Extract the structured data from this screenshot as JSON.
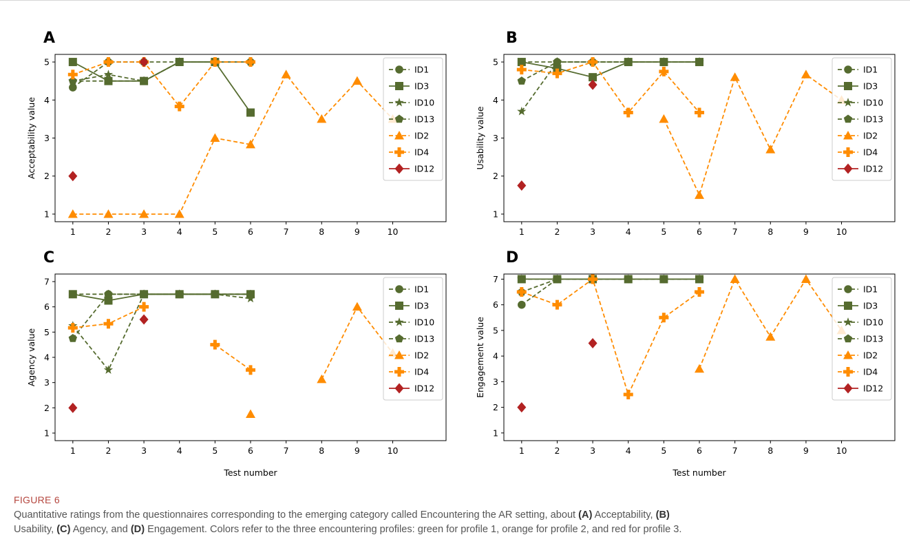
{
  "figure": {
    "label": "FIGURE 6",
    "caption": {
      "t1": "Quantitative ratings from the questionnaires corresponding to the emerging category called Encountering the AR setting, about ",
      "b1": "(A)",
      "t2": " Acceptability, ",
      "b2": "(B)",
      "t3": "Usability, ",
      "b3": "(C)",
      "t4": " Agency, and ",
      "b4": "(D)",
      "t5": " Engagement. Colors refer to the three encountering profiles: green for profile 1, orange for profile 2, and red for profile 3."
    }
  },
  "legend_entries": [
    {
      "name": "ID1",
      "color": "#556b2f",
      "marker": "circle",
      "dash": true
    },
    {
      "name": "ID3",
      "color": "#556b2f",
      "marker": "square",
      "dash": false
    },
    {
      "name": "ID10",
      "color": "#556b2f",
      "marker": "star",
      "dash": true
    },
    {
      "name": "ID13",
      "color": "#556b2f",
      "marker": "pentagon",
      "dash": true
    },
    {
      "name": "ID2",
      "color": "#ff8c00",
      "marker": "triangle",
      "dash": true
    },
    {
      "name": "ID4",
      "color": "#ff8c00",
      "marker": "plus",
      "dash": true
    },
    {
      "name": "ID12",
      "color": "#b22222",
      "marker": "diamond",
      "dash": false
    }
  ],
  "chart_data": [
    {
      "panel": "A",
      "type": "line",
      "ylabel": "Acceptability value",
      "xlabel": "",
      "xticks": [
        "1",
        "2",
        "3",
        "4",
        "5",
        "6",
        "7",
        "8",
        "9",
        "10"
      ],
      "yticks": [
        "1",
        "2",
        "3",
        "4",
        "5"
      ],
      "ylim": [
        0.8,
        5.2
      ],
      "xlim": [
        0.5,
        11.5
      ],
      "legend_position": "top-right",
      "series": [
        {
          "name": "ID1",
          "x": [
            1,
            2,
            3,
            4,
            5,
            6
          ],
          "y": [
            4.33,
            5,
            5,
            5,
            5,
            5
          ]
        },
        {
          "name": "ID3",
          "x": [
            1,
            2,
            3,
            4,
            5,
            6
          ],
          "y": [
            5,
            4.5,
            4.5,
            5,
            5,
            3.67
          ]
        },
        {
          "name": "ID10",
          "x": [
            1,
            2,
            3,
            4,
            5,
            6
          ],
          "y": [
            4.5,
            4.67,
            4.5,
            5,
            5,
            5
          ]
        },
        {
          "name": "ID13",
          "x": [
            1,
            2,
            3,
            4,
            5,
            6
          ],
          "y": [
            4.5,
            4.5,
            4.5,
            5,
            5,
            5
          ]
        },
        {
          "name": "ID2",
          "x": [
            1,
            2,
            3,
            4,
            5,
            6,
            7,
            8,
            9,
            10
          ],
          "y": [
            1,
            1,
            1,
            1,
            3,
            2.83,
            4.67,
            3.5,
            4.5,
            3.5
          ]
        },
        {
          "name": "ID4",
          "x": [
            1,
            2,
            3,
            4,
            5,
            6
          ],
          "y": [
            4.67,
            5,
            5,
            3.83,
            5,
            5
          ]
        },
        {
          "name": "ID12",
          "x": [
            1,
            2,
            3
          ],
          "y": [
            2,
            null,
            5
          ]
        }
      ]
    },
    {
      "panel": "B",
      "type": "line",
      "ylabel": "Usability value",
      "xlabel": "",
      "xticks": [
        "1",
        "2",
        "3",
        "4",
        "5",
        "6",
        "7",
        "8",
        "9",
        "10"
      ],
      "yticks": [
        "1",
        "2",
        "3",
        "4",
        "5"
      ],
      "ylim": [
        0.8,
        5.2
      ],
      "xlim": [
        0.5,
        11.5
      ],
      "legend_position": "top-right",
      "series": [
        {
          "name": "ID1",
          "x": [
            1,
            2,
            3,
            4,
            5,
            6
          ],
          "y": [
            5,
            5,
            5,
            5,
            5,
            5
          ]
        },
        {
          "name": "ID3",
          "x": [
            1,
            2,
            3,
            4,
            5,
            6
          ],
          "y": [
            5,
            4.83,
            4.6,
            5,
            5,
            5
          ]
        },
        {
          "name": "ID10",
          "x": [
            1,
            2,
            3,
            4,
            5,
            6
          ],
          "y": [
            3.7,
            5,
            5,
            5,
            5,
            5
          ]
        },
        {
          "name": "ID13",
          "x": [
            1,
            2,
            3,
            4,
            5,
            6
          ],
          "y": [
            4.5,
            5,
            5,
            5,
            5,
            5
          ]
        },
        {
          "name": "ID2",
          "x": [
            1,
            2,
            3,
            4,
            5,
            6,
            7,
            8,
            9,
            10
          ],
          "y": [
            null,
            null,
            null,
            null,
            3.5,
            1.5,
            4.6,
            2.7,
            4.67,
            4.0
          ]
        },
        {
          "name": "ID4",
          "x": [
            1,
            2,
            3,
            4,
            5,
            6
          ],
          "y": [
            4.8,
            4.7,
            5,
            3.67,
            4.75,
            3.67
          ]
        },
        {
          "name": "ID12",
          "x": [
            1,
            2,
            3
          ],
          "y": [
            1.75,
            null,
            4.4
          ]
        }
      ]
    },
    {
      "panel": "C",
      "type": "line",
      "ylabel": "Agency value",
      "xlabel": "Test number",
      "xticks": [
        "1",
        "2",
        "3",
        "4",
        "5",
        "6",
        "7",
        "8",
        "9",
        "10"
      ],
      "yticks": [
        "1",
        "2",
        "3",
        "4",
        "5",
        "6",
        "7"
      ],
      "ylim": [
        0.7,
        7.3
      ],
      "xlim": [
        0.5,
        11.5
      ],
      "legend_position": "top-right",
      "series": [
        {
          "name": "ID1",
          "x": [
            1,
            2,
            3,
            4,
            5,
            6
          ],
          "y": [
            6.5,
            6.5,
            6.5,
            6.5,
            6.5,
            6.5
          ]
        },
        {
          "name": "ID3",
          "x": [
            1,
            2,
            3,
            4,
            5,
            6
          ],
          "y": [
            6.5,
            6.25,
            6.5,
            6.5,
            6.5,
            6.5
          ]
        },
        {
          "name": "ID10",
          "x": [
            1,
            2,
            3,
            4,
            5,
            6
          ],
          "y": [
            5.25,
            3.5,
            6.5,
            6.5,
            6.5,
            6.33
          ]
        },
        {
          "name": "ID13",
          "x": [
            1,
            2,
            3,
            4,
            5,
            6
          ],
          "y": [
            4.75,
            6.5,
            6.5,
            6.5,
            6.5,
            6.5
          ]
        },
        {
          "name": "ID2",
          "x": [
            1,
            2,
            3,
            4,
            5,
            6,
            7,
            8,
            9,
            10
          ],
          "y": [
            null,
            null,
            null,
            null,
            null,
            1.75,
            null,
            3.13,
            6,
            4.17
          ]
        },
        {
          "name": "ID4",
          "x": [
            1,
            2,
            3,
            4,
            5,
            6
          ],
          "y": [
            5.17,
            5.33,
            6,
            null,
            4.5,
            3.5
          ]
        },
        {
          "name": "ID12",
          "x": [
            1,
            2,
            3
          ],
          "y": [
            2,
            null,
            5.5
          ]
        }
      ]
    },
    {
      "panel": "D",
      "type": "line",
      "ylabel": "Engagement value",
      "xlabel": "Test number",
      "xticks": [
        "1",
        "2",
        "3",
        "4",
        "5",
        "6",
        "7",
        "8",
        "9",
        "10"
      ],
      "yticks": [
        "1",
        "2",
        "3",
        "4",
        "5",
        "6",
        "7"
      ],
      "ylim": [
        0.7,
        7.2
      ],
      "xlim": [
        0.5,
        11.5
      ],
      "legend_position": "top-right",
      "series": [
        {
          "name": "ID1",
          "x": [
            1,
            2,
            3,
            4,
            5,
            6
          ],
          "y": [
            6,
            7,
            7,
            7,
            7,
            7
          ]
        },
        {
          "name": "ID3",
          "x": [
            1,
            2,
            3,
            4,
            5,
            6
          ],
          "y": [
            7,
            7,
            7,
            7,
            7,
            7
          ]
        },
        {
          "name": "ID10",
          "x": [
            1,
            2,
            3,
            4,
            5,
            6
          ],
          "y": [
            7,
            7,
            7,
            7,
            7,
            7
          ]
        },
        {
          "name": "ID13",
          "x": [
            1,
            2,
            3,
            4,
            5,
            6
          ],
          "y": [
            6.5,
            7,
            7,
            7,
            7,
            7
          ]
        },
        {
          "name": "ID2",
          "x": [
            1,
            2,
            3,
            4,
            5,
            6,
            7,
            8,
            9,
            10
          ],
          "y": [
            null,
            null,
            null,
            null,
            null,
            3.5,
            7,
            4.75,
            7,
            5
          ]
        },
        {
          "name": "ID4",
          "x": [
            1,
            2,
            3,
            4,
            5,
            6
          ],
          "y": [
            6.5,
            6,
            7,
            2.5,
            5.5,
            6.5
          ]
        },
        {
          "name": "ID12",
          "x": [
            1,
            2,
            3
          ],
          "y": [
            2,
            null,
            4.5
          ]
        }
      ]
    }
  ]
}
